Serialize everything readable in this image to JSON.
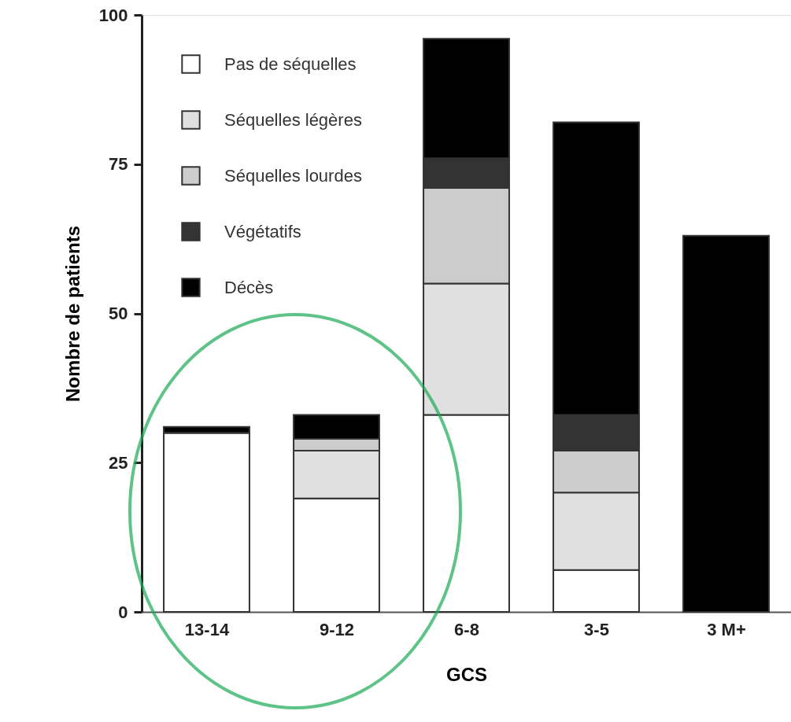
{
  "chart_data": {
    "type": "bar",
    "stacked": true,
    "xlabel": "GCS",
    "ylabel": "Nombre de patients",
    "categories": [
      "13-14",
      "9-12",
      "6-8",
      "3-5",
      "3 M+"
    ],
    "series": [
      {
        "name": "Pas de séquelles",
        "color": "#ffffff",
        "values": [
          30,
          19,
          33,
          7,
          0
        ]
      },
      {
        "name": "Séquelles légères",
        "color": "#e0e0e0",
        "values": [
          0,
          8,
          22,
          13,
          0
        ]
      },
      {
        "name": "Séquelles lourdes",
        "color": "#cccccc",
        "values": [
          0,
          2,
          16,
          7,
          0
        ]
      },
      {
        "name": "Végétatifs",
        "color": "#333333",
        "values": [
          0,
          0,
          5,
          6,
          0
        ]
      },
      {
        "name": "Décès",
        "color": "#000000",
        "values": [
          1,
          4,
          20,
          49,
          63
        ]
      }
    ],
    "ylim": [
      0,
      100
    ],
    "yticks": [
      0,
      25,
      50,
      75,
      100
    ],
    "grid": false,
    "legend": "top left"
  }
}
